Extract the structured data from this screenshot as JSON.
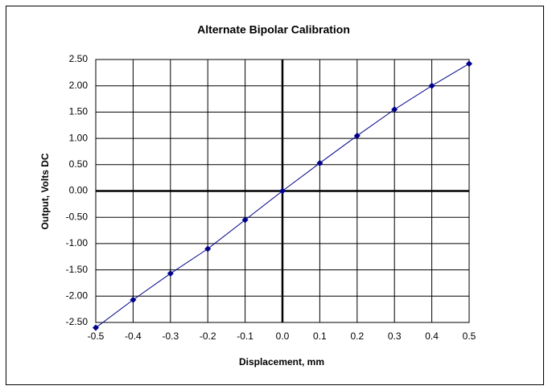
{
  "chart_data": {
    "type": "line",
    "title": "Alternate Bipolar Calibration",
    "x_label": "Displacement, mm",
    "y_label": "Output, Volts DC",
    "x": [
      -0.5,
      -0.4,
      -0.3,
      -0.2,
      -0.1,
      0,
      0.1,
      0.2,
      0.3,
      0.4,
      0.5
    ],
    "series": [
      {
        "name": "Output",
        "color": "#00008b",
        "values": [
          -2.6,
          -2.07,
          -1.57,
          -1.1,
          -0.55,
          0,
          0.53,
          1.05,
          1.55,
          2.0,
          2.42
        ]
      }
    ],
    "xlim": [
      -0.5,
      0.5
    ],
    "xticks": [
      -0.5,
      -0.4,
      -0.3,
      -0.2,
      -0.1,
      {
        "value": 0,
        "label": "0.0"
      },
      0.1,
      0.2,
      0.3,
      0.4,
      0.5
    ],
    "ylim": [
      -2.5,
      2.5
    ],
    "yticks": [
      {
        "value": 2.5,
        "label": "2.50"
      },
      {
        "value": 2,
        "label": "2.00"
      },
      {
        "value": 1.5,
        "label": "1.50"
      },
      {
        "value": 1,
        "label": "1.00"
      },
      {
        "value": 0.5,
        "label": "0.50"
      },
      {
        "value": 0,
        "label": "0.00"
      },
      {
        "value": -0.5,
        "label": "-0.50"
      },
      {
        "value": -1,
        "label": "-1.00"
      },
      {
        "value": -1.5,
        "label": "-1.50"
      },
      {
        "value": -2,
        "label": "-2.00"
      },
      {
        "value": -2.5,
        "label": "-2.50"
      }
    ],
    "grid": true
  }
}
